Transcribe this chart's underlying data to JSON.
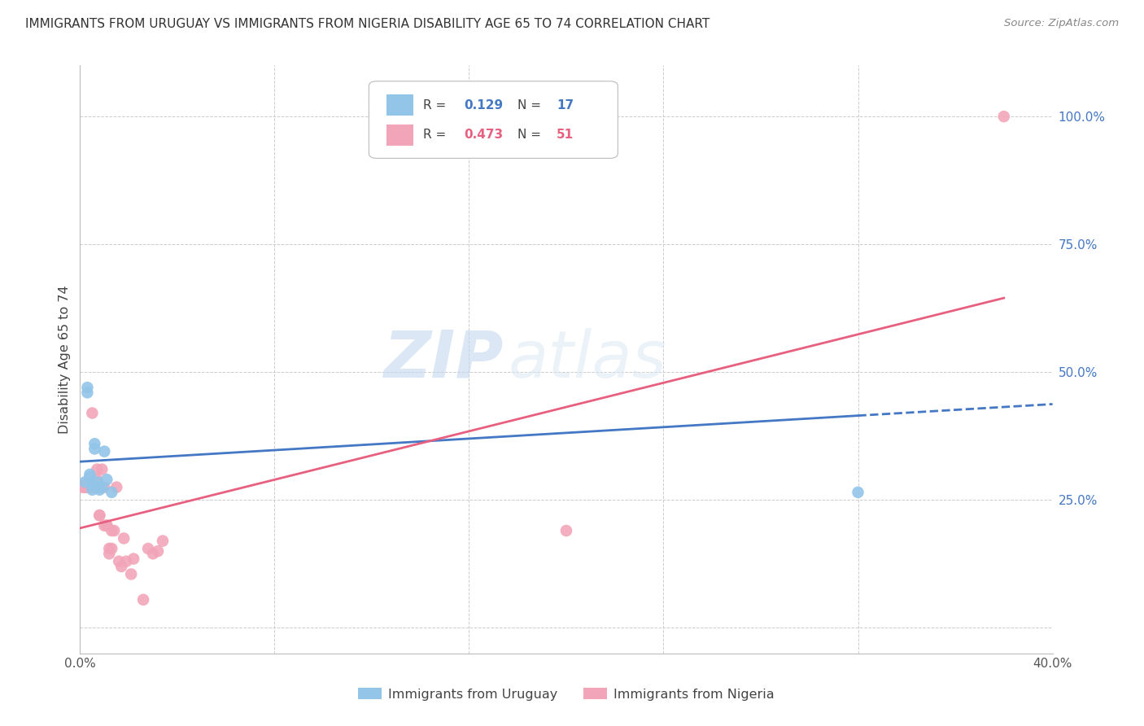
{
  "title": "IMMIGRANTS FROM URUGUAY VS IMMIGRANTS FROM NIGERIA DISABILITY AGE 65 TO 74 CORRELATION CHART",
  "source": "Source: ZipAtlas.com",
  "ylabel": "Disability Age 65 to 74",
  "x_min": 0.0,
  "x_max": 0.4,
  "y_min": -0.05,
  "y_max": 1.1,
  "watermark_line1": "ZIP",
  "watermark_line2": "atlas",
  "color_uruguay": "#92C5E8",
  "color_nigeria": "#F2A5B8",
  "color_line_uruguay": "#4477C4",
  "color_line_nigeria": "#E86080",
  "legend_r1": "R = ",
  "legend_v1": "0.129",
  "legend_n1_label": "N = ",
  "legend_n1": "17",
  "legend_r2": "R = ",
  "legend_v2": "0.473",
  "legend_n2_label": "N = ",
  "legend_n2": "51",
  "uruguay_x": [
    0.002,
    0.003,
    0.003,
    0.004,
    0.004,
    0.005,
    0.005,
    0.006,
    0.006,
    0.007,
    0.007,
    0.008,
    0.009,
    0.01,
    0.011,
    0.013,
    0.32
  ],
  "uruguay_y": [
    0.285,
    0.47,
    0.46,
    0.295,
    0.3,
    0.27,
    0.28,
    0.36,
    0.35,
    0.285,
    0.275,
    0.27,
    0.275,
    0.345,
    0.29,
    0.265,
    0.265
  ],
  "nigeria_x": [
    0.001,
    0.002,
    0.002,
    0.002,
    0.003,
    0.003,
    0.003,
    0.004,
    0.004,
    0.004,
    0.005,
    0.005,
    0.005,
    0.005,
    0.006,
    0.006,
    0.006,
    0.007,
    0.007,
    0.007,
    0.007,
    0.007,
    0.008,
    0.008,
    0.008,
    0.009,
    0.009,
    0.009,
    0.01,
    0.01,
    0.011,
    0.011,
    0.012,
    0.012,
    0.013,
    0.013,
    0.014,
    0.015,
    0.016,
    0.017,
    0.018,
    0.019,
    0.021,
    0.022,
    0.026,
    0.028,
    0.03,
    0.032,
    0.034,
    0.2,
    0.38
  ],
  "nigeria_y": [
    0.275,
    0.275,
    0.28,
    0.275,
    0.275,
    0.275,
    0.28,
    0.275,
    0.275,
    0.275,
    0.275,
    0.28,
    0.42,
    0.275,
    0.275,
    0.275,
    0.275,
    0.275,
    0.28,
    0.29,
    0.31,
    0.275,
    0.22,
    0.22,
    0.275,
    0.275,
    0.31,
    0.275,
    0.2,
    0.275,
    0.2,
    0.2,
    0.155,
    0.145,
    0.19,
    0.155,
    0.19,
    0.275,
    0.13,
    0.12,
    0.175,
    0.13,
    0.105,
    0.135,
    0.055,
    0.155,
    0.145,
    0.15,
    0.17,
    0.19,
    1.0
  ],
  "background_color": "#FFFFFF",
  "grid_color": "#CCCCCC",
  "line_uru_x0": 0.0,
  "line_uru_y0": 0.325,
  "line_uru_x1": 0.32,
  "line_uru_y1": 0.415,
  "line_nig_x0": 0.0,
  "line_nig_y0": 0.195,
  "line_nig_x1": 0.38,
  "line_nig_y1": 0.645
}
